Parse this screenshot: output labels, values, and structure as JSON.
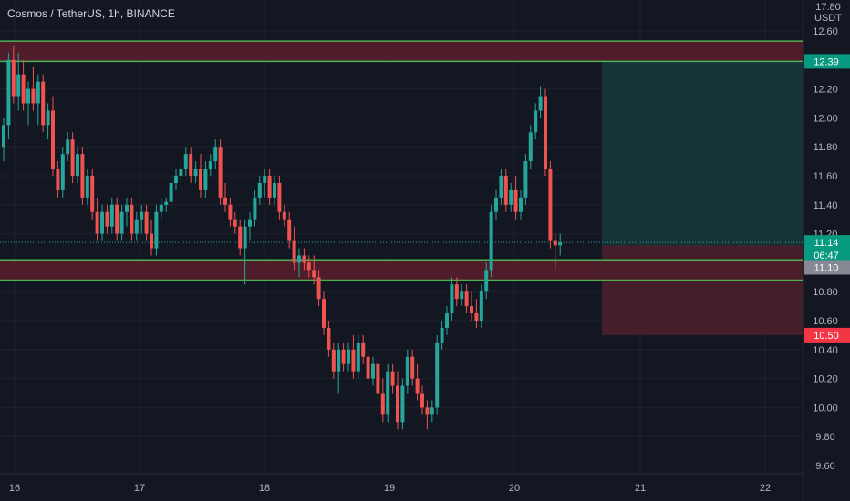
{
  "header": {
    "title": "Cosmos / TetherUS, 1h, BINANCE"
  },
  "axis": {
    "unit_top": "17.80",
    "unit": "USDT",
    "y_ticks": [
      "12.60",
      "12.40",
      "12.20",
      "12.00",
      "11.80",
      "11.60",
      "11.40",
      "11.20",
      "11.00",
      "10.80",
      "10.60",
      "10.40",
      "10.20",
      "10.00",
      "9.80",
      "9.60"
    ],
    "x_ticks": [
      "16",
      "17",
      "18",
      "19",
      "20",
      "21",
      "22"
    ]
  },
  "price_tags": {
    "target": "12.39",
    "current": "11.14",
    "countdown": "06:47",
    "level": "11.10",
    "stop": "10.50"
  },
  "colors": {
    "background": "#131722",
    "bull": "#26a69a",
    "bear": "#ef5350",
    "zone_line": "#4caf50",
    "zone_fill": "#5a1e2a",
    "profit_fill": "#16363a",
    "loss_fill": "#4a1f2a"
  },
  "chart_data": {
    "type": "candlestick",
    "title": "Cosmos / TetherUS, 1h, BINANCE",
    "ylim": [
      9.55,
      12.78
    ],
    "x_categories": [
      "16",
      "17",
      "18",
      "19",
      "20",
      "21",
      "22"
    ],
    "resistance_zone": [
      12.39,
      12.53
    ],
    "support_zone": [
      10.88,
      11.02
    ],
    "long_position": {
      "entry": 11.12,
      "target": 12.39,
      "stop": 10.5
    },
    "last_price": 11.14
  }
}
